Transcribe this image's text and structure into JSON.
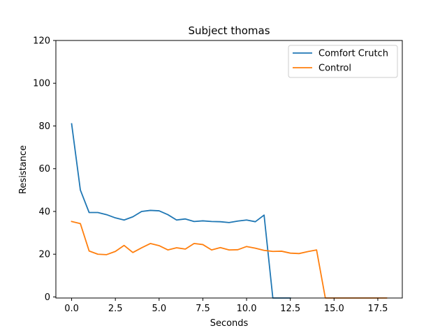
{
  "chart_data": {
    "type": "line",
    "title": "Subject thomas",
    "xlabel": "Seconds",
    "ylabel": "Resistance",
    "xlim": [
      -0.9,
      18.9
    ],
    "ylim": [
      -0.5,
      120
    ],
    "xticks": [
      0.0,
      2.5,
      5.0,
      7.5,
      10.0,
      12.5,
      15.0,
      17.5
    ],
    "xtick_labels": [
      "0.0",
      "2.5",
      "5.0",
      "7.5",
      "10.0",
      "12.5",
      "15.0",
      "17.5"
    ],
    "yticks": [
      0,
      20,
      40,
      60,
      80,
      100,
      120
    ],
    "ytick_labels": [
      "0",
      "20",
      "40",
      "60",
      "80",
      "100",
      "120"
    ],
    "grid": false,
    "legend_position": "top-right",
    "series": [
      {
        "name": "Comfort Crutch",
        "color": "#1f77b4",
        "x": [
          0.0,
          0.5,
          1.0,
          1.5,
          2.0,
          2.5,
          3.0,
          3.5,
          4.0,
          4.5,
          5.0,
          5.5,
          6.0,
          6.5,
          7.0,
          7.5,
          8.0,
          8.5,
          9.0,
          9.5,
          10.0,
          10.5,
          11.0,
          11.5,
          12.0,
          12.5
        ],
        "y": [
          81,
          50,
          39.5,
          39.5,
          38.5,
          37,
          36,
          37.5,
          40,
          40.5,
          40.3,
          38.5,
          36,
          36.5,
          35.3,
          35.6,
          35.3,
          35.2,
          34.8,
          35.5,
          36,
          35.2,
          38.3,
          -0.5,
          -0.5,
          -0.5
        ]
      },
      {
        "name": "Control",
        "color": "#ff7f0e",
        "x": [
          0.0,
          0.5,
          1.0,
          1.5,
          2.0,
          2.5,
          3.0,
          3.5,
          4.0,
          4.5,
          5.0,
          5.5,
          6.0,
          6.5,
          7.0,
          7.5,
          8.0,
          8.5,
          9.0,
          9.5,
          10.0,
          10.5,
          11.0,
          11.5,
          12.0,
          12.5,
          13.0,
          13.5,
          14.0,
          14.5,
          15.0,
          15.5,
          16.0,
          16.5,
          17.0,
          17.5,
          18.0
        ],
        "y": [
          35.3,
          34.3,
          21.5,
          20,
          19.8,
          21.3,
          24.1,
          20.8,
          23,
          25,
          24,
          22,
          23,
          22.4,
          25,
          24.5,
          22,
          23.1,
          22,
          22.1,
          23.6,
          22.8,
          21.8,
          21.3,
          21.4,
          20.5,
          20.3,
          21.2,
          22,
          -0.5,
          -0.5,
          -0.5,
          -0.5,
          -0.5,
          -0.5,
          -0.5,
          -0.5
        ]
      }
    ]
  }
}
